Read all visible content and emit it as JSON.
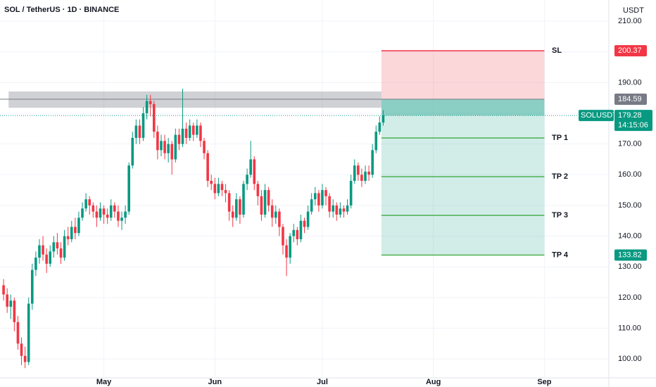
{
  "chart_data": {
    "type": "candlestick",
    "title": "SOL / TetherUS · 1D · BINANCE",
    "y_axis_label": "USDT",
    "symbol": "SOLUSDT",
    "countdown": "14:15:06",
    "up_color": "#089981",
    "down_color": "#f23645",
    "grid": true,
    "xlim": [
      -1,
      169
    ],
    "xticks": [
      {
        "value": 28,
        "label": "May"
      },
      {
        "value": 59,
        "label": "Jun"
      },
      {
        "value": 89,
        "label": "Jul"
      },
      {
        "value": 120,
        "label": "Aug"
      },
      {
        "value": 151,
        "label": "Sep"
      }
    ],
    "ylim": [
      94.3,
      216.9
    ],
    "yticks": [
      {
        "value": 100,
        "label": "100.00"
      },
      {
        "value": 110,
        "label": "110.00"
      },
      {
        "value": 120,
        "label": "120.00"
      },
      {
        "value": 130,
        "label": "130.00"
      },
      {
        "value": 140,
        "label": "140.00"
      },
      {
        "value": 150,
        "label": "150.00"
      },
      {
        "value": 160,
        "label": "160.00"
      },
      {
        "value": 170,
        "label": "170.00"
      },
      {
        "value": 180,
        "label": "180.00"
      },
      {
        "value": 190,
        "label": "190.00"
      },
      {
        "value": 200,
        "label": "200.00"
      },
      {
        "value": 210,
        "label": "210.00"
      }
    ],
    "open": [
      124,
      121,
      117,
      119,
      112,
      105,
      101,
      99,
      118,
      129,
      133,
      137,
      134,
      131,
      135,
      138,
      136,
      133,
      140,
      139,
      143,
      141,
      146,
      149,
      152,
      150,
      148,
      146,
      149,
      147,
      146,
      150,
      148,
      145,
      146,
      148,
      163,
      172,
      176,
      172,
      180,
      184,
      183,
      174,
      168,
      171,
      167,
      170,
      165,
      173,
      170,
      175,
      172,
      176,
      173,
      176,
      171,
      167,
      158,
      157,
      154,
      157,
      155,
      154,
      148,
      146,
      152,
      147,
      157,
      160,
      165,
      157,
      153,
      147,
      155,
      150,
      146,
      148,
      143,
      137,
      133,
      140,
      142,
      139,
      145,
      143,
      148,
      152,
      154,
      150,
      155,
      153,
      148,
      150,
      147,
      149,
      148,
      150,
      158,
      163,
      160,
      158,
      161,
      160,
      168,
      174,
      177
    ],
    "high": [
      126,
      123,
      121,
      120,
      114,
      107,
      104,
      120,
      131,
      135,
      139,
      140,
      136,
      137,
      140,
      141,
      138,
      142,
      143,
      145,
      146,
      148,
      151,
      154,
      153,
      151,
      150,
      151,
      150,
      149,
      152,
      151,
      150,
      148,
      150,
      164,
      174,
      178,
      178,
      182,
      186,
      186,
      184,
      176,
      173,
      173,
      172,
      171,
      175,
      175,
      188,
      177,
      178,
      177,
      178,
      177,
      172,
      168,
      160,
      159,
      159,
      158,
      157,
      155,
      150,
      154,
      153,
      158,
      162,
      171,
      166,
      158,
      155,
      157,
      156,
      152,
      150,
      149,
      144,
      139,
      141,
      144,
      143,
      147,
      146,
      150,
      154,
      156,
      155,
      157,
      156,
      154,
      152,
      151,
      151,
      150,
      152,
      160,
      165,
      164,
      162,
      163,
      163,
      170,
      176,
      179,
      181
    ],
    "low": [
      119,
      115,
      113,
      109,
      103,
      98,
      97,
      98,
      116,
      127,
      131,
      132,
      128,
      130,
      133,
      134,
      131,
      132,
      137,
      138,
      139,
      140,
      145,
      148,
      147,
      146,
      143,
      145,
      144,
      144,
      145,
      146,
      143,
      142,
      144,
      147,
      162,
      170,
      170,
      171,
      178,
      179,
      172,
      165,
      166,
      165,
      164,
      160,
      164,
      168,
      169,
      170,
      171,
      171,
      172,
      169,
      165,
      156,
      155,
      152,
      153,
      153,
      151,
      145,
      143,
      145,
      144,
      146,
      155,
      159,
      155,
      150,
      145,
      146,
      148,
      143,
      144,
      140,
      134,
      127,
      131,
      138,
      137,
      138,
      141,
      142,
      147,
      150,
      148,
      149,
      150,
      146,
      146,
      145,
      146,
      146,
      147,
      149,
      157,
      158,
      156,
      157,
      158,
      159,
      167,
      173,
      176
    ],
    "close": [
      121,
      117,
      119,
      112,
      105,
      101,
      99,
      118,
      129,
      133,
      137,
      134,
      131,
      135,
      138,
      136,
      133,
      140,
      139,
      143,
      141,
      146,
      149,
      152,
      150,
      148,
      146,
      149,
      147,
      146,
      150,
      148,
      145,
      146,
      148,
      163,
      172,
      176,
      172,
      180,
      184,
      183,
      174,
      168,
      171,
      167,
      170,
      165,
      173,
      170,
      175,
      172,
      176,
      173,
      176,
      171,
      167,
      158,
      157,
      154,
      157,
      155,
      154,
      148,
      146,
      152,
      147,
      157,
      160,
      165,
      157,
      153,
      147,
      155,
      150,
      146,
      148,
      143,
      137,
      133,
      140,
      142,
      139,
      145,
      143,
      148,
      152,
      154,
      150,
      155,
      153,
      148,
      150,
      147,
      149,
      148,
      150,
      158,
      163,
      160,
      158,
      161,
      160,
      168,
      174,
      177,
      179.28
    ],
    "zone": {
      "low": 181.8,
      "high": 187.1,
      "start": 1.4,
      "end": 105.5
    },
    "position": {
      "entry": 184.59,
      "stop": 200.37,
      "stop_label": "SL",
      "start": 105.5,
      "end": 151,
      "targets": [
        171.96,
        159.36,
        146.75,
        133.82
      ],
      "target_labels": [
        "TP 1",
        "TP 2",
        "TP 3",
        "TP 4"
      ]
    }
  }
}
